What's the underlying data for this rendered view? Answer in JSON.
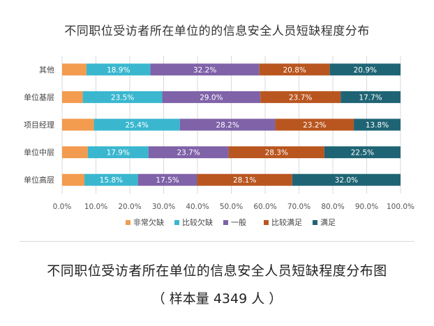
{
  "chart_data": {
    "type": "bar",
    "orientation": "horizontal",
    "stacked": true,
    "percent": true,
    "title": "不同职位受访者所在单位的的信息安全人员短缺程度分布",
    "categories": [
      "其他",
      "单位基层",
      "项目经理",
      "单位中层",
      "单位高层"
    ],
    "series": [
      {
        "name": "非常欠缺",
        "color": "#f39b4f",
        "values": [
          7.2,
          6.1,
          9.4,
          7.6,
          6.6
        ]
      },
      {
        "name": "比较欠缺",
        "color": "#3ab7cf",
        "values": [
          18.9,
          23.5,
          25.4,
          17.9,
          15.8
        ],
        "labels": [
          "18.9%",
          "23.5%",
          "25.4%",
          "17.9%",
          "15.8%"
        ]
      },
      {
        "name": "一般",
        "color": "#7f62a8",
        "values": [
          32.2,
          29.0,
          28.2,
          23.7,
          17.5
        ],
        "labels": [
          "32.2%",
          "29.0%",
          "28.2%",
          "23.7%",
          "17.5%"
        ]
      },
      {
        "name": "比较满足",
        "color": "#b9561f",
        "values": [
          20.8,
          23.7,
          23.2,
          28.3,
          28.1
        ],
        "labels": [
          "20.8%",
          "23.7%",
          "23.2%",
          "28.3%",
          "28.1%"
        ]
      },
      {
        "name": "满足",
        "color": "#1f6474",
        "values": [
          20.9,
          17.7,
          13.8,
          22.5,
          32.0
        ],
        "labels": [
          "20.9%",
          "17.7%",
          "13.8%",
          "22.5%",
          "32.0%"
        ]
      }
    ],
    "xlim": [
      0,
      100
    ],
    "xticks": [
      "0.0%",
      "10.0%",
      "20.0%",
      "30.0%",
      "40.0%",
      "50.0%",
      "60.0%",
      "70.0%",
      "80.0%",
      "90.0%",
      "100.0%"
    ],
    "legend_position": "bottom",
    "grid": true
  },
  "caption": {
    "title": "不同职位受访者所在单位的信息安全人员短缺程度分布图",
    "sample": "（ 样本量 4349 人 ）"
  }
}
